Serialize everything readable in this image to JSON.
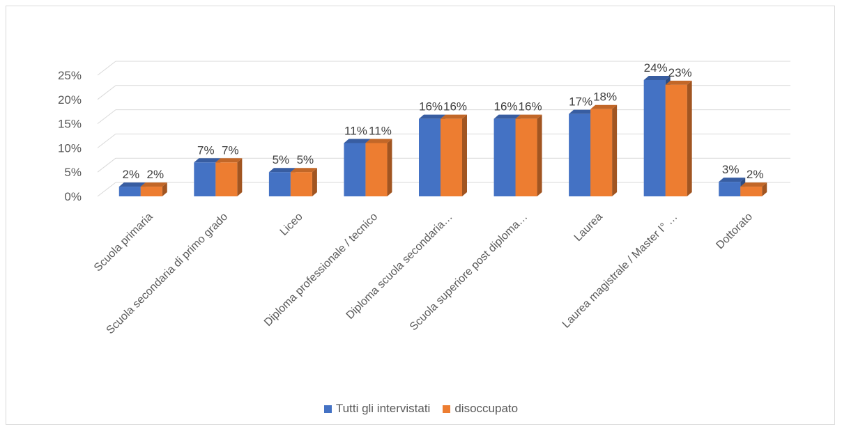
{
  "chart_data": {
    "type": "bar",
    "title": "",
    "xlabel": "",
    "ylabel": "",
    "ylim": [
      0,
      0.25
    ],
    "yticks": [
      "0%",
      "5%",
      "10%",
      "15%",
      "20%",
      "25%"
    ],
    "categories": [
      "Scuola primaria",
      "Scuola secondaria di primo grado",
      "Liceo",
      "Diploma professionale / tecnico",
      "Diploma scuola secondaria…",
      "Scuola superiore post diploma…",
      "Laurea",
      "Laurea magistrale / Master I° …",
      "Dottorato"
    ],
    "series": [
      {
        "name": "Tutti gli intervistati",
        "color": "#4472C4",
        "values": [
          0.02,
          0.07,
          0.05,
          0.11,
          0.16,
          0.16,
          0.17,
          0.24,
          0.03
        ],
        "labels": [
          "2%",
          "7%",
          "5%",
          "11%",
          "16%",
          "16%",
          "17%",
          "24%",
          "3%"
        ]
      },
      {
        "name": "disoccupato",
        "color": "#ED7D31",
        "values": [
          0.02,
          0.07,
          0.05,
          0.11,
          0.16,
          0.16,
          0.18,
          0.23,
          0.02
        ],
        "labels": [
          "2%",
          "7%",
          "5%",
          "11%",
          "16%",
          "16%",
          "18%",
          "23%",
          "2%"
        ]
      }
    ],
    "legend_position": "bottom",
    "grid": true
  }
}
